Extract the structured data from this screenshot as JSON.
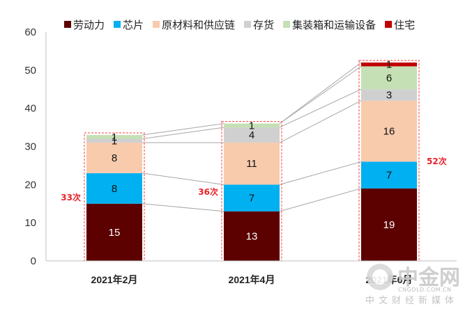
{
  "chart_data": {
    "type": "bar",
    "stacked": true,
    "categories": [
      "2021年2月",
      "2021年4月",
      "2021年6月"
    ],
    "series": [
      {
        "name": "劳动力",
        "color": "#5c0000",
        "values": [
          15,
          13,
          19
        ]
      },
      {
        "name": "芯片",
        "color": "#00b0f0",
        "values": [
          8,
          7,
          7
        ]
      },
      {
        "name": "原材料和供应链",
        "color": "#f8cbad",
        "values": [
          8,
          11,
          16
        ]
      },
      {
        "name": "存货",
        "color": "#d0d0d0",
        "values": [
          1,
          4,
          3
        ]
      },
      {
        "name": "集装箱和运输设备",
        "color": "#c5e0b4",
        "values": [
          1,
          1,
          6
        ]
      },
      {
        "name": "住宅",
        "color": "#c00000",
        "values": [
          0,
          0,
          1
        ]
      }
    ],
    "totals": [
      "33次",
      "36次",
      "52次"
    ],
    "ylim": [
      0,
      60
    ],
    "yticks": [
      "0",
      "10",
      "20",
      "30",
      "40",
      "50",
      "60"
    ],
    "legend_position": "top",
    "grid": false
  },
  "watermark": {
    "logo_text": "中金网",
    "site": "CNGOLD.COM.CN",
    "tagline": "中文财经新媒体"
  }
}
